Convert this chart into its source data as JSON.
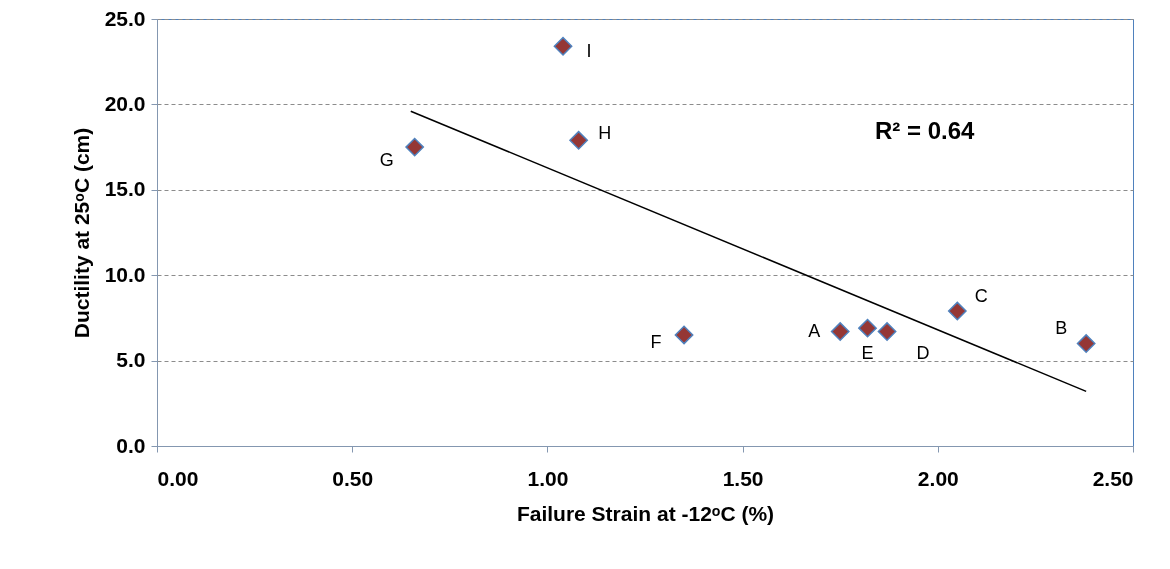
{
  "chart_data": {
    "type": "scatter",
    "xlabel": "Failure Strain at -12ᵒC (%)",
    "ylabel": "Ductility at 25ᵒC (cm)",
    "xlim": [
      0,
      2.5
    ],
    "ylim": [
      0,
      25
    ],
    "xticks": [
      {
        "value": 0,
        "label": "0.00"
      },
      {
        "value": 0.5,
        "label": "0.50"
      },
      {
        "value": 1,
        "label": "1.00"
      },
      {
        "value": 1.5,
        "label": "1.50"
      },
      {
        "value": 2,
        "label": "2.00"
      },
      {
        "value": 2.5,
        "label": "2.50"
      }
    ],
    "yticks": [
      {
        "value": 0,
        "label": "0.0"
      },
      {
        "value": 5,
        "label": "5.0"
      },
      {
        "value": 10,
        "label": "10.0"
      },
      {
        "value": 15,
        "label": "15.0"
      },
      {
        "value": 20,
        "label": "20.0"
      },
      {
        "value": 25,
        "label": "25.0"
      }
    ],
    "grid": "y",
    "marker": "diamond",
    "series": [
      {
        "color": "#953735",
        "x": [
          1.75,
          2.38,
          2.05,
          1.87,
          1.82,
          1.35,
          0.66,
          1.08,
          1.04
        ],
        "values": [
          6.7,
          6.0,
          7.9,
          6.7,
          6.9,
          6.5,
          17.5,
          17.9,
          23.4
        ]
      },
      {
        "type": "line",
        "marker": "none",
        "color": "#000000",
        "x": [
          0.65,
          2.38
        ],
        "values": [
          19.6,
          3.2
        ]
      }
    ],
    "annotations": [
      {
        "text": "A",
        "x": 1.75,
        "y": 6.7
      },
      {
        "text": "B",
        "x": 2.38,
        "y": 6.0
      },
      {
        "text": "C",
        "x": 2.05,
        "y": 7.9
      },
      {
        "text": "D",
        "x": 1.87,
        "y": 6.7
      },
      {
        "text": "E",
        "x": 1.82,
        "y": 6.9
      },
      {
        "text": "F",
        "x": 1.35,
        "y": 6.5
      },
      {
        "text": "G",
        "x": 0.66,
        "y": 17.5
      },
      {
        "text": "H",
        "x": 1.08,
        "y": 17.9
      },
      {
        "text": "I",
        "x": 1.04,
        "y": 23.4
      },
      "R² = 0.64"
    ]
  }
}
